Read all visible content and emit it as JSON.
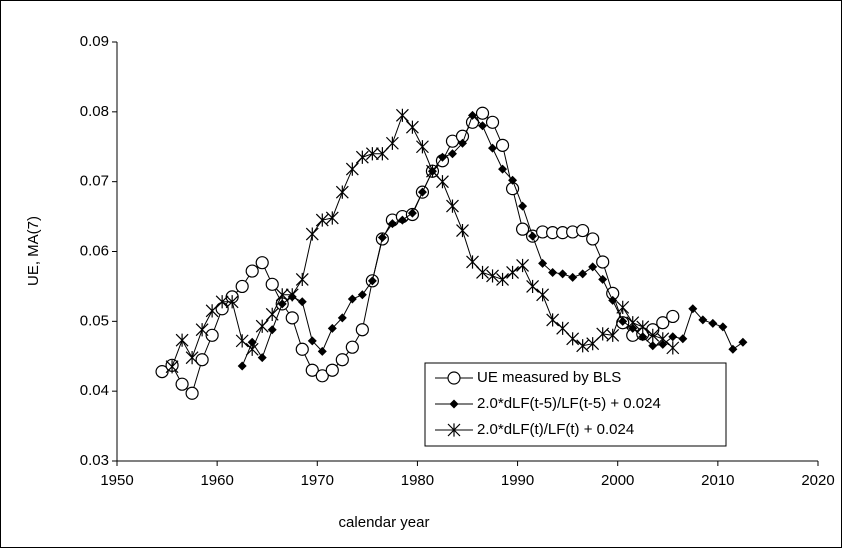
{
  "chart_data": {
    "type": "line",
    "x_label": "calendar year",
    "y_label": "UE, MA(7)",
    "xlim": [
      1950,
      2020
    ],
    "xticks": [
      1950,
      1960,
      1970,
      1980,
      1990,
      2000,
      2010,
      2020
    ],
    "ylim": [
      0.03,
      0.09
    ],
    "yticks": [
      0.03,
      0.04,
      0.05,
      0.06,
      0.07,
      0.08,
      0.09
    ],
    "grid": false,
    "legend": "lower right",
    "series": [
      {
        "name": "UE measured by BLS",
        "color": "#000000",
        "marker": "circle",
        "x": [
          1954.5,
          1955.5,
          1956.5,
          1957.5,
          1958.5,
          1959.5,
          1960.5,
          1961.5,
          1962.5,
          1963.5,
          1964.5,
          1965.5,
          1966.5,
          1967.5,
          1968.5,
          1969.5,
          1970.5,
          1971.5,
          1972.5,
          1973.5,
          1974.5,
          1975.5,
          1976.5,
          1977.5,
          1978.5,
          1979.5,
          1980.5,
          1981.5,
          1982.5,
          1983.5,
          1984.5,
          1985.5,
          1986.5,
          1987.5,
          1988.5,
          1989.5,
          1990.5,
          1991.5,
          1992.5,
          1993.5,
          1994.5,
          1995.5,
          1996.5,
          1997.5,
          1998.5,
          1999.5,
          2000.5,
          2001.5,
          2002.5,
          2003.5,
          2004.5,
          2005.5
        ],
        "values": [
          0.0428,
          0.0437,
          0.041,
          0.0397,
          0.0445,
          0.048,
          0.0518,
          0.0535,
          0.055,
          0.0572,
          0.0584,
          0.0553,
          0.0525,
          0.0505,
          0.046,
          0.043,
          0.0422,
          0.043,
          0.0445,
          0.0463,
          0.0488,
          0.0558,
          0.0618,
          0.0645,
          0.065,
          0.0653,
          0.0685,
          0.0715,
          0.073,
          0.0758,
          0.0765,
          0.0785,
          0.0798,
          0.0785,
          0.0752,
          0.069,
          0.0632,
          0.0622,
          0.0628,
          0.0627,
          0.0627,
          0.0628,
          0.063,
          0.0618,
          0.0585,
          0.054,
          0.0498,
          0.048,
          0.0482,
          0.0488,
          0.0498,
          0.0507
        ]
      },
      {
        "name": "2.0*dLF(t-5)/LF(t-5) + 0.024",
        "color": "#000000",
        "marker": "diamond",
        "x": [
          1962.5,
          1963.5,
          1964.5,
          1965.5,
          1966.5,
          1967.5,
          1968.5,
          1969.5,
          1970.5,
          1971.5,
          1972.5,
          1973.5,
          1974.5,
          1975.5,
          1976.5,
          1977.5,
          1978.5,
          1979.5,
          1980.5,
          1981.5,
          1982.5,
          1983.5,
          1984.5,
          1985.5,
          1986.5,
          1987.5,
          1988.5,
          1989.5,
          1990.5,
          1991.5,
          1992.5,
          1993.5,
          1994.5,
          1995.5,
          1996.5,
          1997.5,
          1998.5,
          1999.5,
          2000.5,
          2001.5,
          2002.5,
          2003.5,
          2004.5,
          2005.5,
          2006.5,
          2007.5,
          2008.5,
          2009.5,
          2010.5,
          2011.5,
          2012.5
        ],
        "values": [
          0.0436,
          0.047,
          0.0448,
          0.0488,
          0.0525,
          0.0535,
          0.0528,
          0.0472,
          0.0457,
          0.049,
          0.0505,
          0.0532,
          0.0538,
          0.0558,
          0.062,
          0.064,
          0.0645,
          0.0655,
          0.0685,
          0.0715,
          0.0735,
          0.074,
          0.0755,
          0.0795,
          0.078,
          0.0748,
          0.0718,
          0.0702,
          0.0665,
          0.0622,
          0.0583,
          0.057,
          0.0568,
          0.0563,
          0.0568,
          0.0578,
          0.056,
          0.053,
          0.05,
          0.049,
          0.0478,
          0.0465,
          0.0467,
          0.0478,
          0.0475,
          0.0518,
          0.0502,
          0.0497,
          0.0492,
          0.046,
          0.047
        ]
      },
      {
        "name": "2.0*dLF(t)/LF(t) + 0.024",
        "color": "#000000",
        "marker": "star",
        "x": [
          1955.5,
          1956.5,
          1957.5,
          1958.5,
          1959.5,
          1960.5,
          1961.5,
          1962.5,
          1963.5,
          1964.5,
          1965.5,
          1966.5,
          1967.5,
          1968.5,
          1969.5,
          1970.5,
          1971.5,
          1972.5,
          1973.5,
          1974.5,
          1975.5,
          1976.5,
          1977.5,
          1978.5,
          1979.5,
          1980.5,
          1981.5,
          1982.5,
          1983.5,
          1984.5,
          1985.5,
          1986.5,
          1987.5,
          1988.5,
          1989.5,
          1990.5,
          1991.5,
          1992.5,
          1993.5,
          1994.5,
          1995.5,
          1996.5,
          1997.5,
          1998.5,
          1999.5,
          2000.5,
          2001.5,
          2002.5,
          2003.5,
          2004.5,
          2005.5
        ],
        "values": [
          0.0435,
          0.0473,
          0.0448,
          0.0488,
          0.0515,
          0.0528,
          0.0528,
          0.0472,
          0.046,
          0.0493,
          0.051,
          0.0538,
          0.0538,
          0.056,
          0.0625,
          0.0645,
          0.0648,
          0.0685,
          0.0718,
          0.0735,
          0.074,
          0.074,
          0.0755,
          0.0795,
          0.0778,
          0.075,
          0.0715,
          0.07,
          0.0665,
          0.063,
          0.0585,
          0.057,
          0.0565,
          0.056,
          0.057,
          0.058,
          0.055,
          0.0538,
          0.0502,
          0.049,
          0.0475,
          0.0465,
          0.0468,
          0.0482,
          0.048,
          0.052,
          0.0498,
          0.0492,
          0.048,
          0.0475,
          0.0462
        ]
      }
    ]
  }
}
